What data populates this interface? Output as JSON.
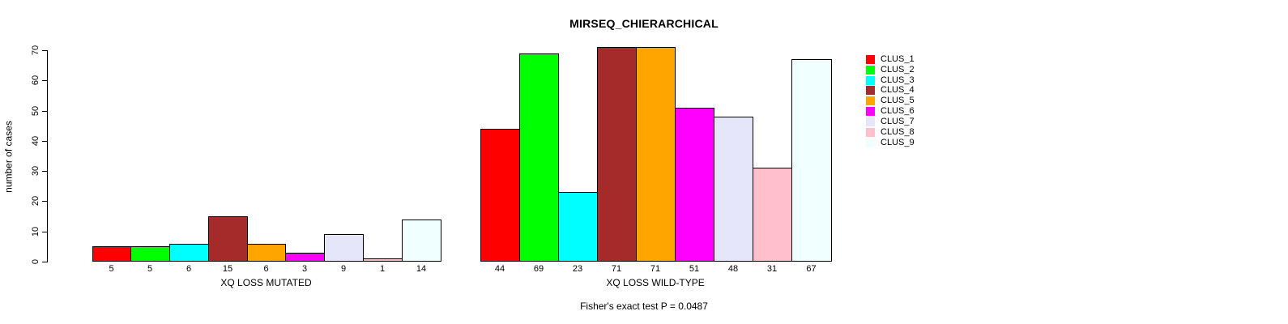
{
  "chart_data": {
    "type": "bar",
    "title": "MIRSEQ_CHIERARCHICAL",
    "ylabel": "number of cases",
    "ylim": [
      0,
      70
    ],
    "yticks": [
      0,
      10,
      20,
      30,
      40,
      50,
      60,
      70
    ],
    "grid": false,
    "legend_position": "right-inside",
    "clusters": [
      {
        "name": "CLUS_1",
        "color": "#FF0000"
      },
      {
        "name": "CLUS_2",
        "color": "#00FF00"
      },
      {
        "name": "CLUS_3",
        "color": "#00FFFF"
      },
      {
        "name": "CLUS_4",
        "color": "#A52A2A"
      },
      {
        "name": "CLUS_5",
        "color": "#FFA500"
      },
      {
        "name": "CLUS_6",
        "color": "#FF00FF"
      },
      {
        "name": "CLUS_7",
        "color": "#E6E6FA"
      },
      {
        "name": "CLUS_8",
        "color": "#FFC0CB"
      },
      {
        "name": "CLUS_9",
        "color": "#F0FFFF"
      }
    ],
    "groups": [
      {
        "label": "XQ LOSS MUTATED",
        "values": [
          5,
          5,
          6,
          15,
          6,
          3,
          9,
          1,
          14
        ]
      },
      {
        "label": "XQ LOSS WILD-TYPE",
        "values": [
          44,
          69,
          23,
          71,
          71,
          51,
          48,
          31,
          67
        ]
      }
    ],
    "annotation": "Fisher's exact test P = 0.0487",
    "colors": {
      "background": "#FFFFFF",
      "axis": "#000000",
      "bar_border": "#000000",
      "text": "#000000"
    }
  }
}
